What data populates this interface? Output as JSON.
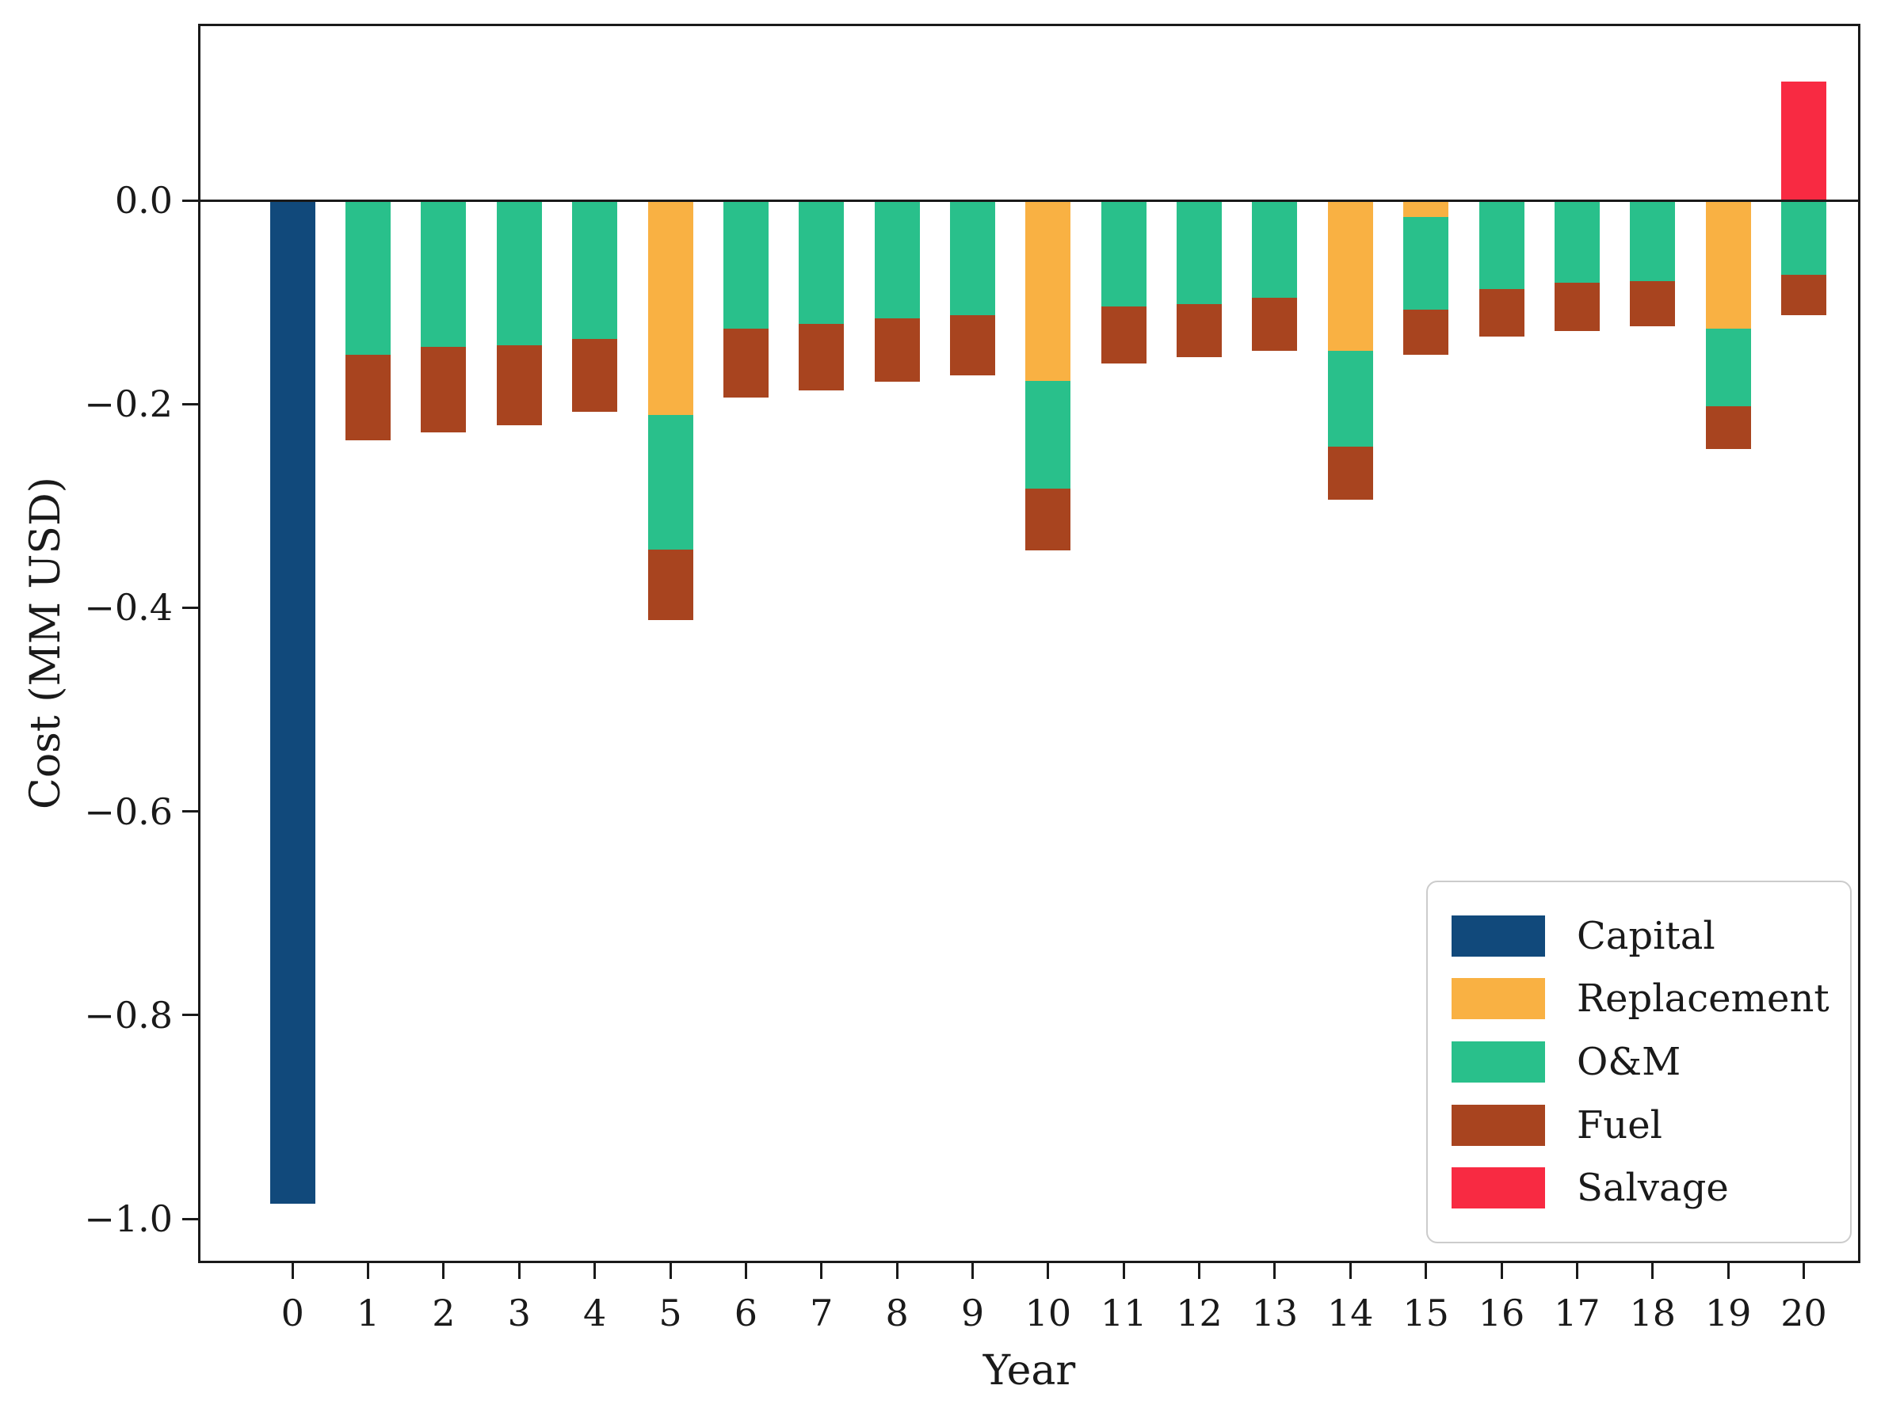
{
  "figure": {
    "xlabel": "Year",
    "ylabel": "Cost (MM USD)"
  },
  "chart_data": {
    "type": "bar",
    "stacked": true,
    "title": "",
    "xlabel": "Year",
    "ylabel": "Cost (MM USD)",
    "grid": false,
    "legend_position": "lower right",
    "ylim": [
      -1.04,
      0.17
    ],
    "categories": [
      "0",
      "1",
      "2",
      "3",
      "4",
      "5",
      "6",
      "7",
      "8",
      "9",
      "10",
      "11",
      "12",
      "13",
      "14",
      "15",
      "16",
      "17",
      "18",
      "19",
      "20"
    ],
    "yticks": [
      {
        "value": 0.0,
        "label": "0.0"
      },
      {
        "value": -0.2,
        "label": "−0.2"
      },
      {
        "value": -0.4,
        "label": "−0.4"
      },
      {
        "value": -0.6,
        "label": "−0.6"
      },
      {
        "value": -0.8,
        "label": "−0.8"
      },
      {
        "value": -1.0,
        "label": "−1.0"
      }
    ],
    "series": [
      {
        "name": "Capital",
        "color": "#11497b",
        "values": [
          -0.985,
          0,
          0,
          0,
          0,
          0,
          0,
          0,
          0,
          0,
          0,
          0,
          0,
          0,
          0,
          0,
          0,
          0,
          0,
          0,
          0
        ]
      },
      {
        "name": "Replacement",
        "color": "#f9b143",
        "values": [
          0,
          0,
          0,
          0,
          0,
          -0.211,
          0,
          0,
          0,
          0,
          -0.177,
          0,
          0,
          0,
          -0.148,
          -0.016,
          0,
          0,
          0,
          -0.126,
          0
        ]
      },
      {
        "name": "O&M",
        "color": "#29c08b",
        "values": [
          0,
          -0.152,
          -0.144,
          -0.142,
          -0.136,
          -0.132,
          -0.126,
          -0.121,
          -0.116,
          -0.113,
          -0.106,
          -0.104,
          -0.102,
          -0.096,
          -0.094,
          -0.091,
          -0.087,
          -0.081,
          -0.079,
          -0.076,
          -0.073
        ]
      },
      {
        "name": "Fuel",
        "color": "#a8441f",
        "values": [
          0,
          -0.084,
          -0.084,
          -0.079,
          -0.072,
          -0.069,
          -0.068,
          -0.066,
          -0.062,
          -0.059,
          -0.061,
          -0.056,
          -0.052,
          -0.052,
          -0.052,
          -0.045,
          -0.047,
          -0.047,
          -0.045,
          -0.042,
          -0.04
        ]
      },
      {
        "name": "Salvage",
        "color": "#f82a42",
        "values": [
          0,
          0,
          0,
          0,
          0,
          0,
          0,
          0,
          0,
          0,
          0,
          0,
          0,
          0,
          0,
          0,
          0,
          0,
          0,
          0,
          0.117
        ]
      }
    ]
  }
}
